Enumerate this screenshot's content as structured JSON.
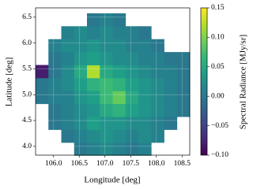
{
  "chart_data": {
    "type": "heatmap",
    "xlabel": "Longitude [deg]",
    "ylabel": "Latitude [deg]",
    "colorbar_label": "Spectral Radiance [MJy/sr]",
    "colormap": "viridis",
    "grid": true,
    "x": [
      105.775,
      106.025,
      106.275,
      106.525,
      106.775,
      107.025,
      107.275,
      107.525,
      107.775,
      108.025,
      108.275,
      108.525
    ],
    "y": [
      3.95,
      4.2,
      4.45,
      4.7,
      4.95,
      5.2,
      5.45,
      5.7,
      5.95,
      6.2,
      6.45
    ],
    "values": [
      [
        null,
        null,
        null,
        0.0,
        0.01,
        0.02,
        0.01,
        0.0,
        0.01,
        null,
        null,
        null
      ],
      [
        null,
        null,
        0.0,
        0.01,
        0.02,
        0.03,
        0.02,
        0.01,
        0.02,
        0.01,
        null,
        null
      ],
      [
        null,
        0.0,
        0.01,
        0.02,
        0.04,
        0.03,
        0.03,
        0.02,
        0.02,
        0.01,
        0.0,
        null
      ],
      [
        null,
        0.0,
        0.01,
        0.02,
        0.03,
        0.05,
        0.06,
        0.04,
        0.03,
        0.02,
        0.01,
        0.0
      ],
      [
        0.0,
        0.01,
        0.01,
        0.03,
        0.04,
        0.07,
        0.09,
        0.05,
        0.03,
        0.02,
        0.01,
        0.0
      ],
      [
        0.0,
        0.01,
        0.02,
        0.04,
        0.06,
        0.07,
        0.06,
        0.04,
        0.03,
        0.02,
        0.01,
        0.0
      ],
      [
        -0.08,
        0.0,
        0.02,
        0.05,
        0.12,
        0.05,
        0.04,
        0.03,
        0.02,
        0.01,
        0.01,
        0.0
      ],
      [
        null,
        0.0,
        0.01,
        0.03,
        0.04,
        0.03,
        0.02,
        0.02,
        0.01,
        0.01,
        0.0,
        0.0
      ],
      [
        null,
        0.01,
        0.02,
        0.02,
        0.03,
        0.02,
        0.02,
        0.01,
        0.01,
        0.0,
        null,
        null
      ],
      [
        null,
        null,
        0.01,
        0.02,
        0.01,
        0.02,
        0.01,
        0.01,
        0.0,
        null,
        null,
        null
      ],
      [
        null,
        null,
        null,
        null,
        0.0,
        0.01,
        0.0,
        null,
        null,
        null,
        null,
        null
      ]
    ],
    "xlim": [
      105.65,
      108.65
    ],
    "ylim": [
      3.83,
      6.68
    ],
    "xticks": [
      {
        "value": 106,
        "label": "106.0"
      },
      106.5,
      {
        "value": 107,
        "label": "107.0"
      },
      107.5,
      {
        "value": 108,
        "label": "108.0"
      },
      108.5
    ],
    "yticks": [
      {
        "value": 4,
        "label": "4.0"
      },
      4.5,
      {
        "value": 5,
        "label": "5.0"
      },
      5.5,
      {
        "value": 6,
        "label": "6.0"
      },
      6.5
    ],
    "clim": [
      -0.1,
      0.15
    ],
    "cticks": [
      {
        "value": -0.1,
        "label": "−0.10"
      },
      {
        "value": -0.05,
        "label": "−0.05"
      },
      {
        "value": 0,
        "label": "0.00"
      },
      0.05,
      {
        "value": 0.1,
        "label": "0.10"
      },
      0.15
    ]
  }
}
